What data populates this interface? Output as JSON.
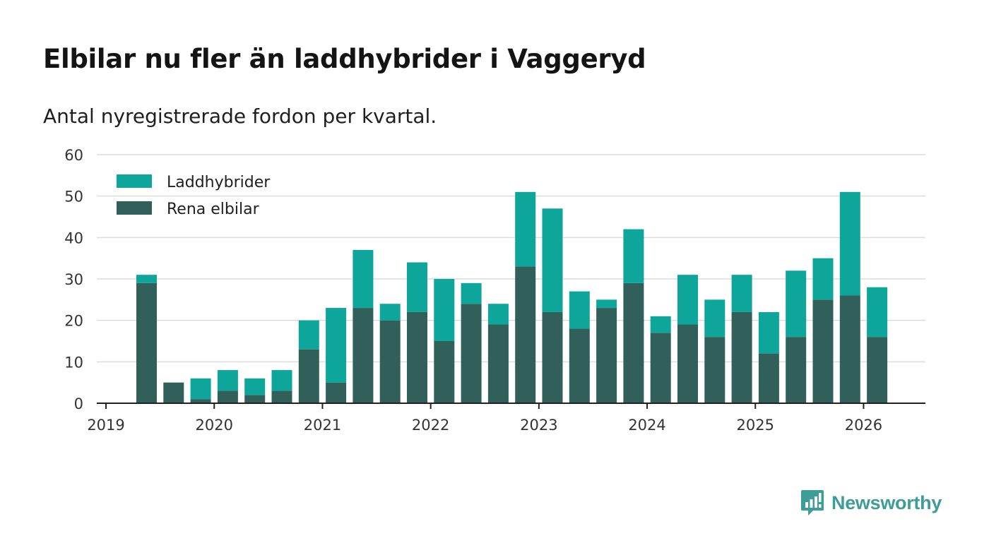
{
  "title": "Elbilar nu fler än laddhybrider i Vaggeryd",
  "subtitle": "Antal nyregistrerade fordon per kvartal.",
  "brand": "Newsworthy",
  "colors": {
    "laddhybrider": "#0ea69b",
    "elbilar": "#31605a",
    "grid": "#dcdcdc",
    "axis": "#222222"
  },
  "chart_data": {
    "type": "bar",
    "stacked": true,
    "title": "Elbilar nu fler än laddhybrider i Vaggeryd",
    "subtitle": "Antal nyregistrerade fordon per kvartal.",
    "xlabel": "",
    "ylabel": "",
    "ylim": [
      0,
      60
    ],
    "yticks": [
      0,
      10,
      20,
      30,
      40,
      50,
      60
    ],
    "xticks": [
      "2019",
      "2020",
      "2021",
      "2022",
      "2023",
      "2024",
      "2025",
      "2026"
    ],
    "grid": true,
    "legend_position": "top-left",
    "categories": [
      "2019 Q2",
      "2019 Q3",
      "2019 Q4",
      "2020 Q1",
      "2020 Q2",
      "2020 Q3",
      "2020 Q4",
      "2021 Q1",
      "2021 Q2",
      "2021 Q3",
      "2021 Q4",
      "2022 Q1",
      "2022 Q2",
      "2022 Q3",
      "2022 Q4",
      "2023 Q1",
      "2023 Q2",
      "2023 Q3",
      "2023 Q4",
      "2024 Q1",
      "2024 Q2",
      "2024 Q3",
      "2024 Q4",
      "2025 Q1",
      "2025 Q2",
      "2025 Q3",
      "2025 Q4",
      "2026 Q1"
    ],
    "series": [
      {
        "name": "Rena elbilar",
        "values": [
          29,
          5,
          1,
          3,
          2,
          3,
          13,
          5,
          23,
          20,
          22,
          15,
          24,
          19,
          33,
          22,
          18,
          23,
          29,
          17,
          19,
          16,
          22,
          12,
          16,
          25,
          26,
          16
        ]
      },
      {
        "name": "Laddhybrider",
        "values": [
          2,
          0,
          5,
          5,
          4,
          5,
          7,
          18,
          14,
          4,
          12,
          15,
          5,
          5,
          18,
          25,
          9,
          2,
          13,
          4,
          12,
          9,
          9,
          10,
          16,
          10,
          25,
          12
        ]
      }
    ]
  }
}
